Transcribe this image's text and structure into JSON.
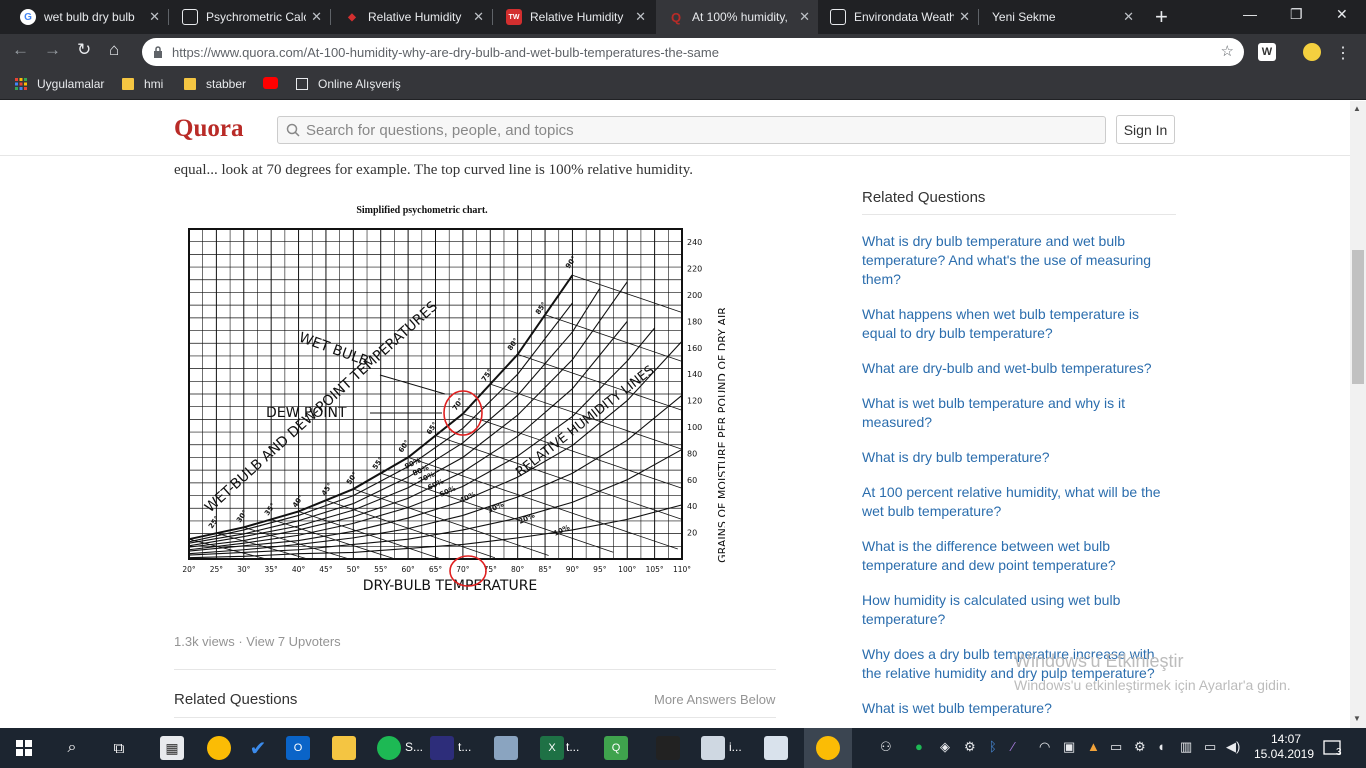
{
  "browser": {
    "tabs": [
      {
        "title": "wet bulb dry bulb",
        "icon": "google-g-icon",
        "color": "#4285f4"
      },
      {
        "title": "Psychrometric Calc",
        "icon": "page-icon",
        "color": "#e8eaed"
      },
      {
        "title": "Relative Humidity",
        "icon": "diamond-icon",
        "color": "#d32f2f"
      },
      {
        "title": "Relative Humidity",
        "icon": "site-logo-icon",
        "color": "#d32f2f"
      },
      {
        "title": "At 100% humidity,",
        "icon": "quora-icon",
        "color": "#b92b27",
        "active": true
      },
      {
        "title": "Environdata Weath",
        "icon": "page-icon",
        "color": "#e8eaed"
      },
      {
        "title": "Yeni Sekme",
        "icon": "none",
        "color": "#e8eaed"
      }
    ],
    "new_tab": "+",
    "url": "https://www.quora.com/At-100-humidity-why-are-dry-bulb-and-wet-bulb-temperatures-the-same",
    "bookmarks": [
      {
        "label": "Uygulamalar",
        "icon": "apps-grid-icon"
      },
      {
        "label": "hmi",
        "icon": "folder-icon"
      },
      {
        "label": "stabber",
        "icon": "folder-icon"
      },
      {
        "label": "",
        "icon": "youtube-icon"
      },
      {
        "label": "Online Alışveriş",
        "icon": "page-icon"
      }
    ]
  },
  "quora": {
    "logo": "Quora",
    "search_placeholder": "Search for questions, people, and topics",
    "sign_in": "Sign In",
    "answer_text": "equal... look at 70 degrees for example. The top curved line is 100% relative humidity.",
    "views": "1.3k views",
    "upvoters": "View 7 Upvoters",
    "related_title": "Related Questions",
    "more_answers": "More Answers Below",
    "sidebar": {
      "title": "Related Questions",
      "items": [
        "What is dry bulb temperature and wet bulb temperature? And what's the use of measuring them?",
        "What happens when wet bulb temperature is equal to dry bulb temperature?",
        "What are dry-bulb and wet-bulb temperatures?",
        "What is wet bulb temperature and why is it measured?",
        "What is dry bulb temperature?",
        "At 100 percent relative humidity, what will be the wet bulb temperature?",
        "What is the difference between wet bulb temperature and dew point temperature?",
        "How humidity is calculated using wet bulb temperature?",
        "Why does a dry bulb temperature increase with the relative humidity and dry pulp temperature?",
        "What is wet bulb temperature?"
      ]
    }
  },
  "chart_data": {
    "type": "line",
    "title": "Simplified psychometric chart.",
    "xlabel": "DRY-BULB TEMPERATURE",
    "ylabel": "GRAINS OF MOISTURE PER POUND OF DRY AIR",
    "x_ticks": [
      "20°",
      "25°",
      "30°",
      "35°",
      "40°",
      "45°",
      "50°",
      "55°",
      "60°",
      "65°",
      "70°",
      "75°",
      "80°",
      "85°",
      "90°",
      "95°",
      "100°",
      "105°",
      "110°"
    ],
    "y_ticks": [
      "20",
      "40",
      "60",
      "80",
      "100",
      "120",
      "140",
      "160",
      "180",
      "200",
      "220",
      "240"
    ],
    "xlim": [
      20,
      110
    ],
    "ylim": [
      0,
      250
    ],
    "rh_labels": [
      "90%",
      "80%",
      "70%",
      "60%",
      "50%",
      "40%",
      "30%",
      "20%",
      "10%"
    ],
    "wet_bulb_labels": [
      "25°",
      "30°",
      "35°",
      "40°",
      "45°",
      "50°",
      "55°",
      "60°",
      "65°",
      "70°",
      "75°",
      "80°",
      "85°",
      "90°"
    ],
    "annotations": [
      "WET BULB",
      "DEW POINT",
      "WET-BULB AND DEW-POINT TEMPERATURES",
      "RELATIVE HUMIDITY LINES"
    ],
    "series": [
      {
        "name": "100%",
        "x": [
          20,
          30,
          40,
          50,
          60,
          70,
          80,
          90
        ],
        "y": [
          15,
          24,
          36,
          53,
          77,
          110,
          155,
          215
        ]
      },
      {
        "name": "90%",
        "x": [
          20,
          30,
          40,
          50,
          60,
          70,
          80,
          90
        ],
        "y": [
          13,
          22,
          33,
          48,
          70,
          99,
          140,
          194
        ]
      },
      {
        "name": "80%",
        "x": [
          20,
          30,
          40,
          50,
          60,
          70,
          80,
          90,
          95
        ],
        "y": [
          12,
          19,
          29,
          42,
          62,
          88,
          124,
          172,
          205
        ]
      },
      {
        "name": "70%",
        "x": [
          20,
          30,
          40,
          50,
          60,
          70,
          80,
          90,
          100
        ],
        "y": [
          10,
          17,
          25,
          37,
          54,
          77,
          109,
          151,
          210
        ]
      },
      {
        "name": "60%",
        "x": [
          20,
          30,
          40,
          50,
          60,
          70,
          80,
          90,
          100
        ],
        "y": [
          9,
          14,
          22,
          32,
          46,
          66,
          93,
          129,
          180
        ]
      },
      {
        "name": "50%",
        "x": [
          20,
          30,
          40,
          50,
          60,
          70,
          80,
          90,
          100,
          105
        ],
        "y": [
          7,
          12,
          18,
          27,
          39,
          55,
          78,
          108,
          150,
          175
        ]
      },
      {
        "name": "40%",
        "x": [
          20,
          30,
          40,
          50,
          60,
          70,
          80,
          90,
          100,
          110
        ],
        "y": [
          6,
          10,
          14,
          21,
          31,
          44,
          62,
          86,
          120,
          165
        ]
      },
      {
        "name": "30%",
        "x": [
          20,
          30,
          40,
          50,
          60,
          70,
          80,
          90,
          100,
          110
        ],
        "y": [
          4,
          7,
          11,
          16,
          23,
          33,
          47,
          65,
          90,
          124
        ]
      },
      {
        "name": "20%",
        "x": [
          20,
          30,
          40,
          50,
          60,
          70,
          80,
          90,
          100,
          110
        ],
        "y": [
          3,
          5,
          7,
          11,
          15,
          22,
          31,
          43,
          60,
          83
        ]
      },
      {
        "name": "10%",
        "x": [
          20,
          30,
          40,
          50,
          60,
          70,
          80,
          90,
          100,
          110
        ],
        "y": [
          1,
          2,
          4,
          5,
          8,
          11,
          16,
          22,
          30,
          41
        ]
      }
    ],
    "highlight_color": "#e02020",
    "highlights": [
      "70° on saturation curve",
      "70° dry-bulb axis"
    ]
  },
  "watermark": {
    "line1": "Windows'u Etkinleştir",
    "line2": "Windows'u etkinleştirmek için Ayarlar'a gidin."
  },
  "taskbar": {
    "labels": [
      "S...",
      "t...",
      "t...",
      "i..."
    ],
    "time": "14:07",
    "date": "15.04.2019",
    "notifications": "3"
  }
}
